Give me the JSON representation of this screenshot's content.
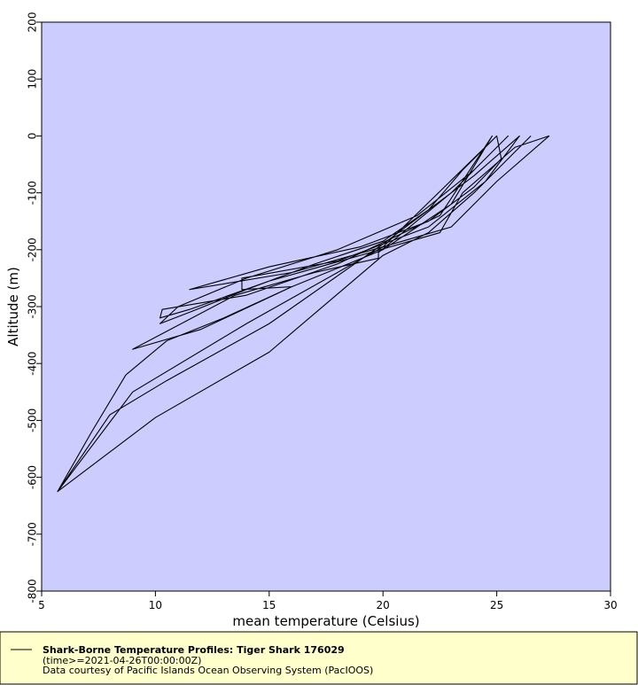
{
  "chart_data": {
    "type": "line",
    "title": "Shark-Borne Temperature Profiles: Tiger Shark 176029",
    "subtitle": "(time>=2021-04-26T00:00:00Z)",
    "annotation": "Data courtesy of Pacific Islands Ocean Observing System (PacIOOS)",
    "x_label": "mean temperature (Celsius)",
    "y_label": "Altitude (m)",
    "xlim": [
      5,
      30
    ],
    "ylim": [
      -800,
      200
    ],
    "xticks": [
      5,
      10,
      15,
      20,
      25,
      30
    ],
    "yticks": [
      -800,
      -700,
      -600,
      -500,
      -400,
      -300,
      -200,
      -100,
      0,
      100,
      200
    ],
    "background": "#ccccff",
    "x": [
      25,
      23.5,
      22,
      20,
      17,
      14,
      11.5,
      10.2,
      11,
      14,
      18,
      21.5,
      24,
      25.5,
      23,
      19.8,
      19.8,
      17,
      13.5,
      9,
      12,
      16,
      13.8,
      13.8,
      18,
      22,
      24.5,
      26,
      24,
      20,
      15,
      10.5,
      8,
      5.7,
      7.2,
      8.7,
      10.5,
      13,
      16,
      20,
      23,
      24.8,
      22.5,
      18,
      14,
      10.3,
      10.2,
      11.5,
      15,
      19,
      22.5,
      23.5,
      25.8,
      27.3,
      25,
      23,
      20,
      16,
      11.5,
      15,
      19,
      22,
      24,
      25.2,
      25,
      20,
      14,
      9,
      5.7,
      10,
      15,
      20,
      22,
      24,
      26.5
    ],
    "series": [
      {
        "color": "#000000",
        "values": [
          0,
          -60,
          -130,
          -185,
          -225,
          -270,
          -310,
          -330,
          -300,
          -250,
          -200,
          -140,
          -60,
          0,
          -100,
          -205,
          -215,
          -240,
          -280,
          -375,
          -340,
          -265,
          -270,
          -250,
          -220,
          -160,
          -80,
          0,
          -70,
          -190,
          -330,
          -430,
          -490,
          -625,
          -520,
          -420,
          -360,
          -320,
          -265,
          -200,
          -120,
          0,
          -140,
          -225,
          -280,
          -305,
          -320,
          -305,
          -255,
          -210,
          -170,
          -100,
          -20,
          0,
          -80,
          -160,
          -195,
          -240,
          -270,
          -230,
          -195,
          -150,
          -90,
          -40,
          0,
          -195,
          -330,
          -450,
          -625,
          -495,
          -380,
          -210,
          -170,
          -100,
          0
        ]
      }
    ]
  }
}
